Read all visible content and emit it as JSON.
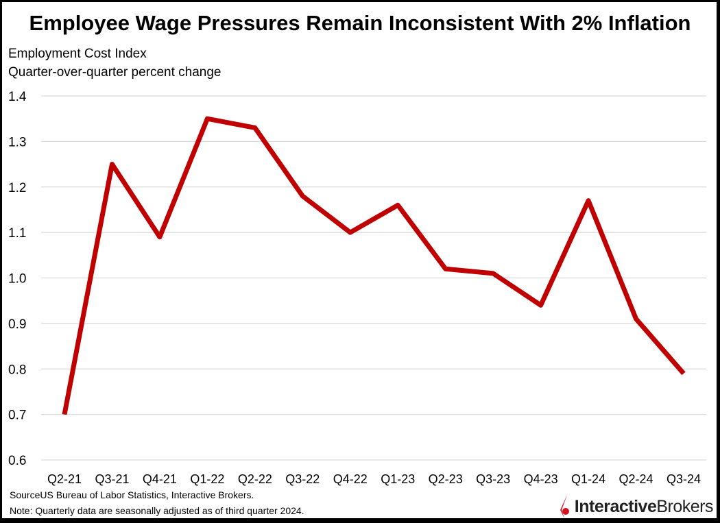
{
  "title": "Employee Wage Pressures Remain Inconsistent With 2% Inflation",
  "subtitle_line1": "Employment Cost Index",
  "subtitle_line2": "Quarter-over-quarter percent change",
  "footer": {
    "source": "SourceUS Bureau of Labor Statistics, Interactive Brokers.",
    "note": "Note: Quarterly data are seasonally adjusted as of third quarter 2024."
  },
  "logo": {
    "bold": "Interactive",
    "regular": "Brokers",
    "color": "#d81222"
  },
  "chart_data": {
    "type": "line",
    "title": "Employee Wage Pressures Remain Inconsistent With 2% Inflation",
    "ylabel": "Employment Cost Index, Quarter-over-quarter percent change",
    "categories": [
      "Q2-21",
      "Q3-21",
      "Q4-21",
      "Q1-22",
      "Q2-22",
      "Q3-22",
      "Q4-22",
      "Q1-23",
      "Q2-23",
      "Q3-23",
      "Q4-23",
      "Q1-24",
      "Q2-24",
      "Q3-24"
    ],
    "values": [
      0.7,
      1.25,
      1.09,
      1.35,
      1.33,
      1.18,
      1.1,
      1.16,
      1.02,
      1.01,
      0.94,
      1.17,
      0.91,
      0.79
    ],
    "ylim": [
      0.6,
      1.4
    ],
    "yticks": [
      "0.6",
      "0.7",
      "0.8",
      "0.9",
      "1.0",
      "1.1",
      "1.2",
      "1.3",
      "1.4"
    ],
    "grid": true,
    "line_color": "#c00000"
  }
}
